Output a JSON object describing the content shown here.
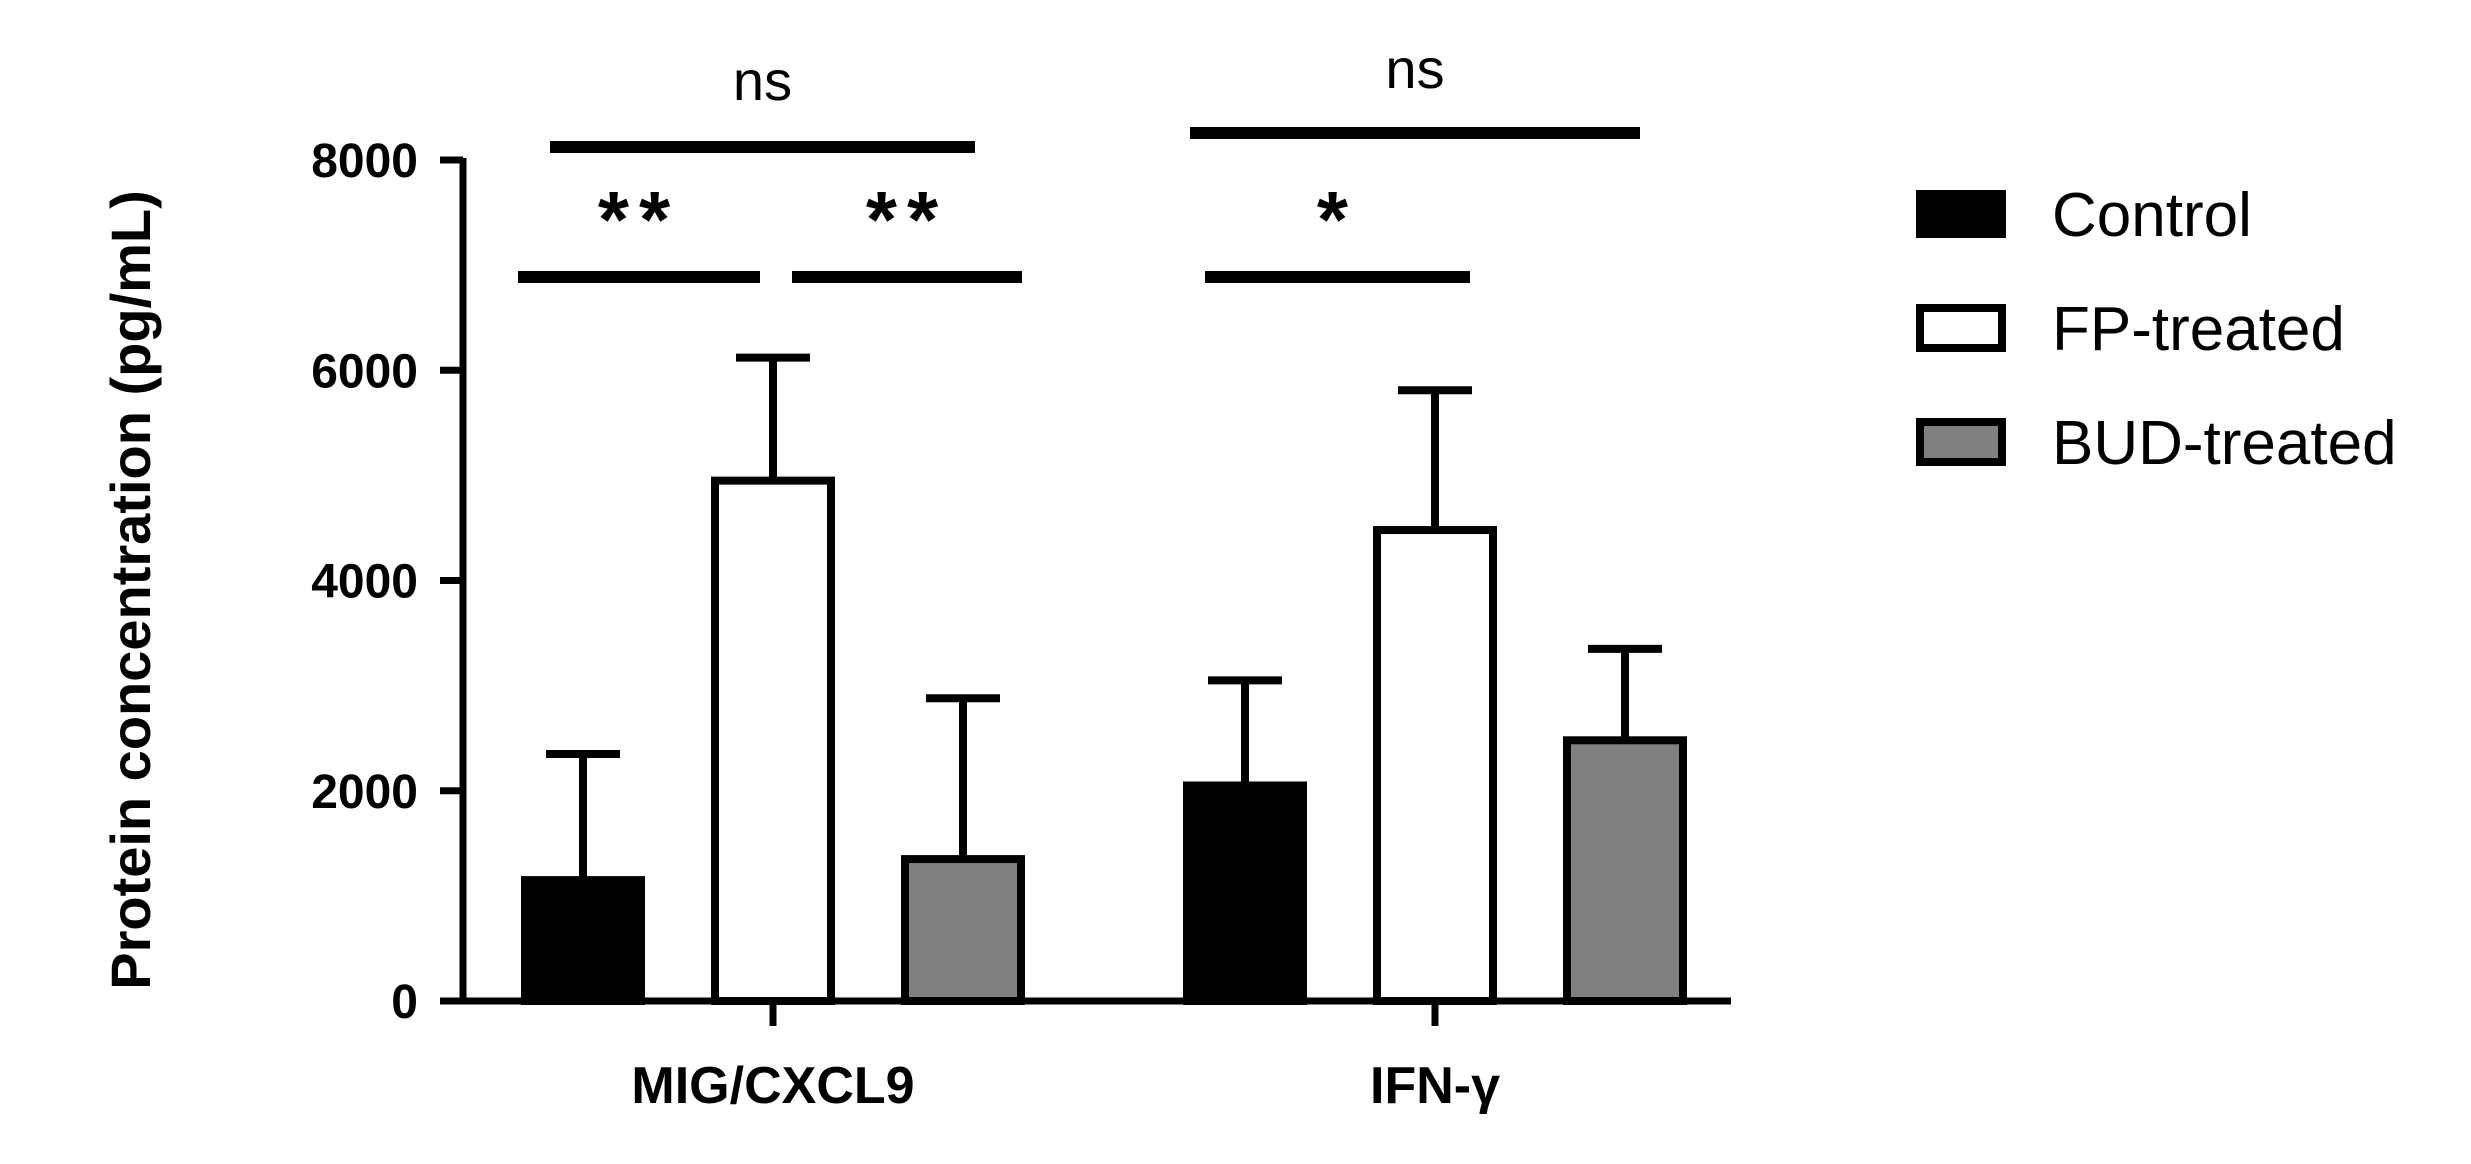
{
  "chart_data": {
    "type": "bar",
    "title": "",
    "xlabel": "",
    "ylabel": "Protein concentration (pg/mL)",
    "ylim": [
      0,
      8000
    ],
    "yticks": [
      0,
      2000,
      4000,
      6000,
      8000
    ],
    "categories": [
      "MIG/CXCL9",
      "IFN-γ"
    ],
    "series": [
      {
        "name": "Control",
        "color": "#000000",
        "values": [
          1150,
          2050
        ],
        "errors": [
          1200,
          1000
        ]
      },
      {
        "name": "FP-treated",
        "color": "#ffffff",
        "values": [
          4950,
          4480
        ],
        "errors": [
          1170,
          1330
        ]
      },
      {
        "name": "BUD-treated",
        "color": "#808080",
        "values": [
          1350,
          2480
        ],
        "errors": [
          1530,
          870
        ]
      }
    ],
    "significance": [
      {
        "category": 0,
        "from": 0,
        "to": 1,
        "label": "**"
      },
      {
        "category": 0,
        "from": 1,
        "to": 2,
        "label": "**"
      },
      {
        "category": 0,
        "from": 0,
        "to": 2,
        "label": "ns"
      },
      {
        "category": 1,
        "from": 0,
        "to": 1,
        "label": "*"
      },
      {
        "category": 1,
        "from": 0,
        "to": 2,
        "label": "ns"
      }
    ],
    "legend_position": "right",
    "grid": false
  }
}
